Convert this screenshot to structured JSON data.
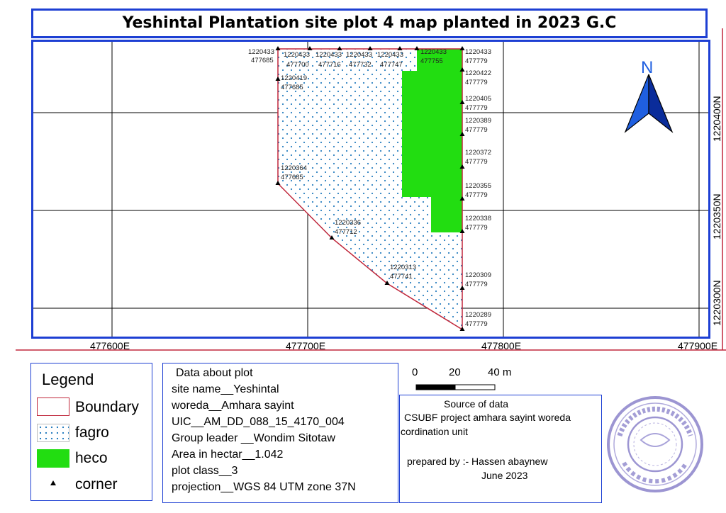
{
  "title": "Yeshintal Plantation site plot 4 map planted in 2023 G.C",
  "map": {
    "x_axis_labels": [
      "477600E",
      "477700E",
      "477800E",
      "477900E"
    ],
    "y_axis_labels": [
      "1220400N",
      "1220350N",
      "1220300N"
    ],
    "north_arrow_label": "N",
    "colors": {
      "boundary": "#c0273b",
      "heco": "#22dd11",
      "fagro_dots": "#2a7fc0",
      "grid": "#000000",
      "frame": "#1d3fd3"
    },
    "corner_labels": [
      {
        "n": "1220433",
        "e": "477685"
      },
      {
        "n": "1220433",
        "e": "477700"
      },
      {
        "n": "1220433",
        "e": "477716"
      },
      {
        "n": "1220433",
        "e": "477732"
      },
      {
        "n": "1220433",
        "e": "477747"
      },
      {
        "n": "1220433",
        "e": "477755"
      },
      {
        "n": "1220433",
        "e": "477779"
      },
      {
        "n": "1220422",
        "e": "477779"
      },
      {
        "n": "1220405",
        "e": "477779"
      },
      {
        "n": "1220389",
        "e": "477779"
      },
      {
        "n": "1220372",
        "e": "477779"
      },
      {
        "n": "1220355",
        "e": "477779"
      },
      {
        "n": "1220338",
        "e": "477779"
      },
      {
        "n": "1220309",
        "e": "477779"
      },
      {
        "n": "1220289",
        "e": "477779"
      },
      {
        "n": "1220313",
        "e": "477741"
      },
      {
        "n": "1220336",
        "e": "477712"
      },
      {
        "n": "1220364",
        "e": "477685"
      },
      {
        "n": "1220419",
        "e": "477685"
      }
    ]
  },
  "legend": {
    "title": "Legend",
    "items": [
      {
        "label": "Boundary"
      },
      {
        "label": "fagro"
      },
      {
        "label": "heco"
      },
      {
        "label": "corner"
      }
    ]
  },
  "plot_info": {
    "heading": "Data about plot",
    "lines": [
      "site name__Yeshintal",
      "woreda__Amhara sayint",
      "UIC__AM_DD_088_15_4170_004",
      "Group leader __Wondim Sitotaw",
      "Area in hectar__1.042",
      "plot class__3",
      "projection__WGS 84 UTM zone 37N"
    ]
  },
  "scale_bar": {
    "labels": [
      "0",
      "20",
      "40 m"
    ]
  },
  "source": {
    "heading": "Source of data",
    "lines": [
      "CSUBF project amhara sayint woreda",
      "cordination unit"
    ],
    "prepared_by": "prepared by :- Hassen abaynew",
    "date": "June 2023"
  }
}
